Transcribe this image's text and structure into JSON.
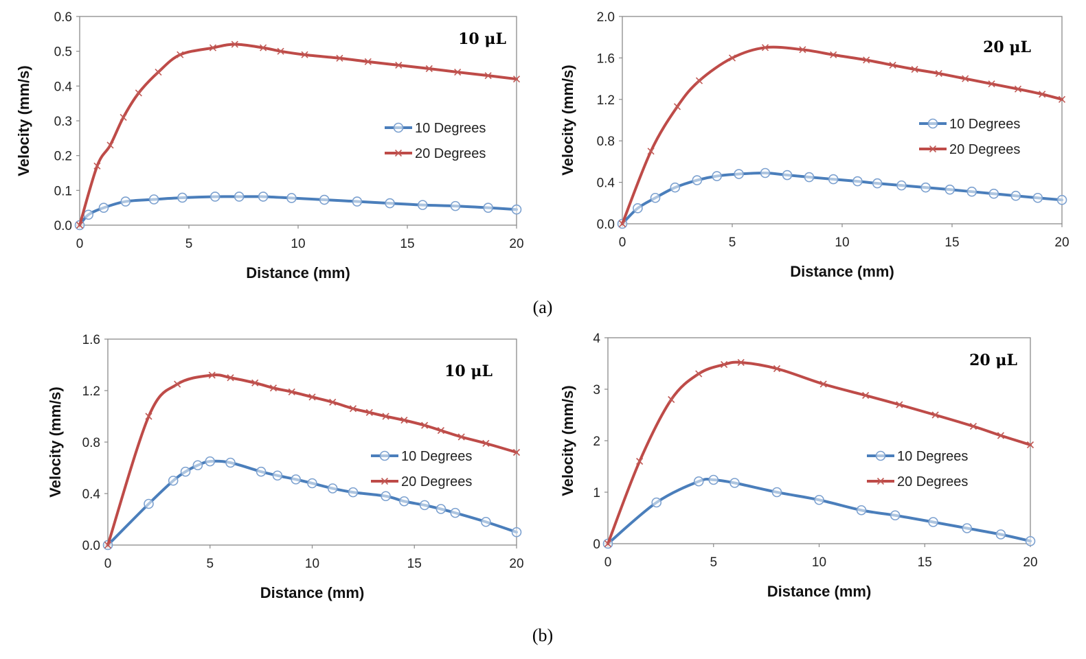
{
  "captions": {
    "a": "(a)",
    "b": "(b)"
  },
  "colors": {
    "blue": "#4a7ebb",
    "red": "#be4b48",
    "marker_blue": "#7ba0cf",
    "marker_red": "#c05a56"
  },
  "chart_data": [
    {
      "type": "line",
      "title": "10 μL",
      "xlabel": "Distance (mm)",
      "ylabel": "Velocity (mm/s)",
      "xlim": [
        0,
        20
      ],
      "ylim": [
        0,
        0.6
      ],
      "xticks": [
        0,
        5,
        10,
        15,
        20
      ],
      "yticks": [
        0,
        0.1,
        0.2,
        0.3,
        0.4,
        0.5,
        0.6
      ],
      "xtick_labels": [
        "0",
        "5",
        "10",
        "15",
        "20"
      ],
      "ytick_labels": [
        "0.0",
        "0.1",
        "0.2",
        "0.3",
        "0.4",
        "0.5",
        "0.6"
      ],
      "legend_position": "right",
      "series": [
        {
          "name": "10 Degrees",
          "marker": "circle",
          "color": "#4a7ebb",
          "x": [
            0,
            0.4,
            1.1,
            2.1,
            3.4,
            4.7,
            6.2,
            7.3,
            8.4,
            9.7,
            11.2,
            12.7,
            14.2,
            15.7,
            17.2,
            18.7,
            20
          ],
          "y": [
            0.0,
            0.03,
            0.05,
            0.068,
            0.074,
            0.079,
            0.082,
            0.082,
            0.082,
            0.078,
            0.073,
            0.068,
            0.063,
            0.058,
            0.055,
            0.05,
            0.045
          ]
        },
        {
          "name": "20 Degrees",
          "marker": "x",
          "color": "#be4b48",
          "x": [
            0,
            0.8,
            1.4,
            2.0,
            2.7,
            3.6,
            4.6,
            6.1,
            7.1,
            8.4,
            9.2,
            10.3,
            11.9,
            13.2,
            14.6,
            16.0,
            17.3,
            18.7,
            20
          ],
          "y": [
            0.0,
            0.17,
            0.23,
            0.31,
            0.38,
            0.44,
            0.49,
            0.51,
            0.52,
            0.51,
            0.5,
            0.49,
            0.48,
            0.47,
            0.46,
            0.45,
            0.44,
            0.43,
            0.42
          ]
        }
      ]
    },
    {
      "type": "line",
      "title": "20 μL",
      "xlabel": "Distance (mm)",
      "ylabel": "Velocity (mm/s)",
      "xlim": [
        0,
        20
      ],
      "ylim": [
        0,
        2.0
      ],
      "xticks": [
        0,
        5,
        10,
        15,
        20
      ],
      "yticks": [
        0,
        0.4,
        0.8,
        1.2,
        1.6,
        2.0
      ],
      "xtick_labels": [
        "0",
        "5",
        "10",
        "15",
        "20"
      ],
      "ytick_labels": [
        "0.0",
        "0.4",
        "0.8",
        "1.2",
        "1.6",
        "2.0"
      ],
      "legend_position": "right",
      "series": [
        {
          "name": "10 Degrees",
          "marker": "circle",
          "color": "#4a7ebb",
          "x": [
            0,
            0.7,
            1.5,
            2.4,
            3.4,
            4.3,
            5.3,
            6.5,
            7.5,
            8.5,
            9.6,
            10.7,
            11.6,
            12.7,
            13.8,
            14.9,
            15.9,
            16.9,
            17.9,
            18.9,
            20
          ],
          "y": [
            0.0,
            0.15,
            0.25,
            0.35,
            0.42,
            0.46,
            0.48,
            0.49,
            0.47,
            0.45,
            0.43,
            0.41,
            0.39,
            0.37,
            0.35,
            0.33,
            0.31,
            0.29,
            0.27,
            0.25,
            0.23
          ]
        },
        {
          "name": "20 Degrees",
          "marker": "x",
          "color": "#be4b48",
          "x": [
            0,
            1.3,
            2.5,
            3.5,
            5.0,
            6.5,
            8.2,
            9.6,
            11.1,
            12.3,
            13.3,
            14.4,
            15.6,
            16.8,
            18.0,
            19.1,
            20
          ],
          "y": [
            0.0,
            0.7,
            1.13,
            1.38,
            1.6,
            1.7,
            1.68,
            1.63,
            1.58,
            1.53,
            1.49,
            1.45,
            1.4,
            1.35,
            1.3,
            1.25,
            1.2
          ]
        }
      ]
    },
    {
      "type": "line",
      "title": "10 μL",
      "xlabel": "Distance (mm)",
      "ylabel": "Velocity (mm/s)",
      "xlim": [
        0,
        20
      ],
      "ylim": [
        0,
        1.6
      ],
      "xticks": [
        0,
        5,
        10,
        15,
        20
      ],
      "yticks": [
        0,
        0.4,
        0.8,
        1.2,
        1.6
      ],
      "xtick_labels": [
        "0",
        "5",
        "10",
        "15",
        "20"
      ],
      "ytick_labels": [
        "0.0",
        "0.4",
        "0.8",
        "1.2",
        "1.6"
      ],
      "legend_position": "right",
      "series": [
        {
          "name": "10 Degrees",
          "marker": "circle",
          "color": "#4a7ebb",
          "x": [
            0,
            2.0,
            3.2,
            3.8,
            4.4,
            5.0,
            6.0,
            7.5,
            8.3,
            9.2,
            10.0,
            11.0,
            12.0,
            13.6,
            14.5,
            15.5,
            16.3,
            17.0,
            18.5,
            20
          ],
          "y": [
            0.0,
            0.32,
            0.5,
            0.57,
            0.62,
            0.65,
            0.64,
            0.57,
            0.54,
            0.51,
            0.48,
            0.44,
            0.41,
            0.38,
            0.34,
            0.31,
            0.28,
            0.25,
            0.18,
            0.1
          ]
        },
        {
          "name": "20 Degrees",
          "marker": "x",
          "color": "#be4b48",
          "x": [
            0,
            2.0,
            3.4,
            5.1,
            6.0,
            7.2,
            8.1,
            9.0,
            10.0,
            11.0,
            12.0,
            12.8,
            13.6,
            14.5,
            15.5,
            16.3,
            17.3,
            18.5,
            20
          ],
          "y": [
            0.0,
            1.0,
            1.25,
            1.32,
            1.3,
            1.26,
            1.22,
            1.19,
            1.15,
            1.11,
            1.06,
            1.03,
            1.0,
            0.97,
            0.93,
            0.89,
            0.84,
            0.79,
            0.72
          ]
        }
      ]
    },
    {
      "type": "line",
      "title": "20 μL",
      "xlabel": "Distance (mm)",
      "ylabel": "Velocity (mm/s)",
      "xlim": [
        0,
        20
      ],
      "ylim": [
        0,
        4
      ],
      "xticks": [
        0,
        5,
        10,
        15,
        20
      ],
      "yticks": [
        0,
        1,
        2,
        3,
        4
      ],
      "xtick_labels": [
        "0",
        "5",
        "10",
        "15",
        "20"
      ],
      "ytick_labels": [
        "0",
        "1",
        "2",
        "3",
        "4"
      ],
      "legend_position": "right",
      "series": [
        {
          "name": "10 Degrees",
          "marker": "circle",
          "color": "#4a7ebb",
          "x": [
            0,
            2.3,
            4.3,
            5.0,
            6.0,
            8.0,
            10.0,
            12.0,
            13.6,
            15.4,
            17.0,
            18.6,
            20
          ],
          "y": [
            0.0,
            0.8,
            1.21,
            1.24,
            1.18,
            1.0,
            0.85,
            0.65,
            0.55,
            0.42,
            0.3,
            0.18,
            0.05
          ]
        },
        {
          "name": "20 Degrees",
          "marker": "x",
          "color": "#be4b48",
          "x": [
            0,
            1.5,
            3.0,
            4.3,
            5.5,
            6.3,
            8.0,
            10.2,
            12.2,
            13.8,
            15.5,
            17.3,
            18.6,
            20
          ],
          "y": [
            0.0,
            1.6,
            2.8,
            3.3,
            3.48,
            3.52,
            3.4,
            3.1,
            2.88,
            2.7,
            2.5,
            2.28,
            2.1,
            1.92
          ]
        }
      ]
    }
  ]
}
